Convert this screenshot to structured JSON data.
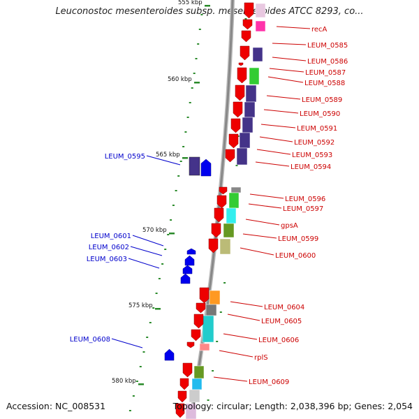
{
  "title": "Leuconostoc mesenteroides subsp. mesenteroides ATCC 8293, co...",
  "footer": {
    "accession": "Accession: NC_008531",
    "summary": "Topology: circular; Length: 2,038,396 bp; Genes: 2,054"
  },
  "colors": {
    "forward_label": "#cc0000",
    "reverse_label": "#0000cc",
    "forward_gene": "#ee0000",
    "reverse_gene": "#0000ee",
    "tick": "#2a8a2a",
    "backbone": "#888888"
  },
  "ruler": [
    {
      "label": "555 kbp"
    },
    {
      "label": "560 kbp"
    },
    {
      "label": "565 kbp"
    },
    {
      "label": "570 kbp"
    },
    {
      "label": "575 kbp"
    },
    {
      "label": "580 kbp"
    }
  ],
  "forward_labels": [
    {
      "name": "recA"
    },
    {
      "name": "LEUM_0585"
    },
    {
      "name": "LEUM_0586"
    },
    {
      "name": "LEUM_0587"
    },
    {
      "name": "LEUM_0588"
    },
    {
      "name": "LEUM_0589"
    },
    {
      "name": "LEUM_0590"
    },
    {
      "name": "LEUM_0591"
    },
    {
      "name": "LEUM_0592"
    },
    {
      "name": "LEUM_0593"
    },
    {
      "name": "LEUM_0594"
    },
    {
      "name": "LEUM_0596"
    },
    {
      "name": "LEUM_0597"
    },
    {
      "name": "gpsA"
    },
    {
      "name": "LEUM_0599"
    },
    {
      "name": "LEUM_0600"
    },
    {
      "name": "LEUM_0604"
    },
    {
      "name": "LEUM_0605"
    },
    {
      "name": "LEUM_0606"
    },
    {
      "name": "rplS"
    },
    {
      "name": "LEUM_0609"
    }
  ],
  "reverse_labels": [
    {
      "name": "LEUM_0595"
    },
    {
      "name": "LEUM_0601"
    },
    {
      "name": "LEUM_0602"
    },
    {
      "name": "LEUM_0603"
    },
    {
      "name": "LEUM_0608"
    }
  ]
}
